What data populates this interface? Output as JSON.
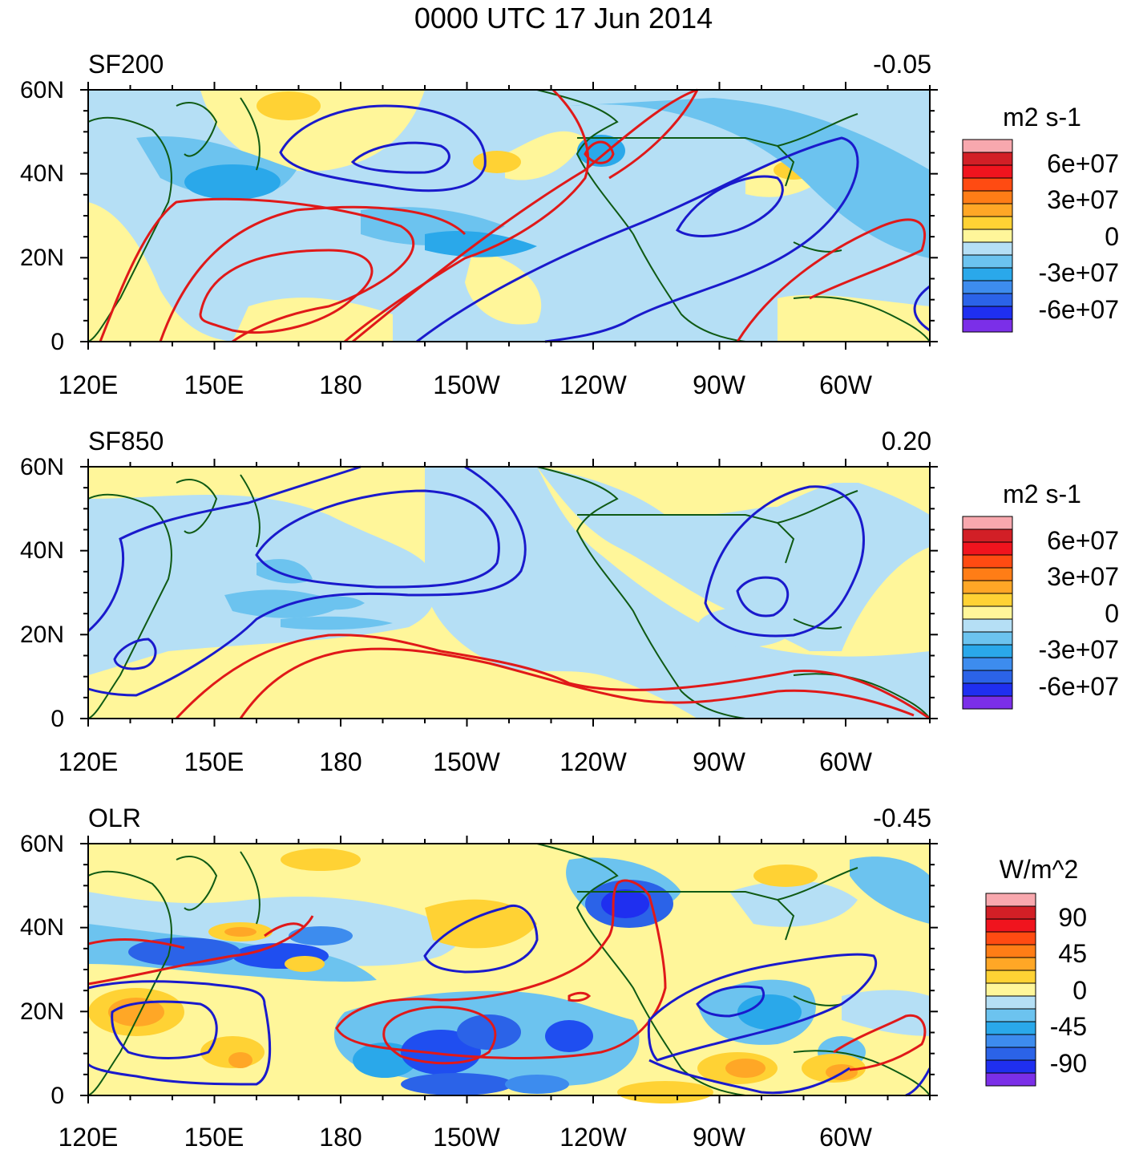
{
  "title": "0000 UTC 17 Jun 2014",
  "colors": {
    "land_outline": "#0f5a14",
    "positive_contour": "#e01919",
    "negative_contour": "#1a1acc",
    "shade_light_yellow": "#fff69a",
    "shade_light_blue": "#b5dff5",
    "shade_mid_blue": "#6cc3ef",
    "shade_blue": "#2aa8ea",
    "shade_dark_blue": "#1f4ef0",
    "shade_orange_yellow": "#ffd234",
    "shade_orange": "#ffa726"
  },
  "lat_labels": [
    "60N",
    "40N",
    "20N",
    "0"
  ],
  "lon_labels": [
    "120E",
    "150E",
    "180",
    "150W",
    "120W",
    "90W",
    "60W"
  ],
  "panels": [
    {
      "id": "sf200",
      "label": "SF200",
      "correlation": "-0.05",
      "units": "m2 s-1",
      "colorbar_labels": [
        "6e+07",
        "3e+07",
        "0",
        "-3e+07",
        "-6e+07"
      ]
    },
    {
      "id": "sf850",
      "label": "SF850",
      "correlation": "0.20",
      "units": "m2 s-1",
      "colorbar_labels": [
        "6e+07",
        "3e+07",
        "0",
        "-3e+07",
        "-6e+07"
      ]
    },
    {
      "id": "olr",
      "label": "OLR",
      "correlation": "-0.45",
      "units": "W/m^2",
      "colorbar_labels": [
        "90",
        "45",
        "0",
        "-45",
        "-90"
      ]
    }
  ],
  "colorbar_colors": [
    "#f8a8ae",
    "#d21f26",
    "#f0141e",
    "#ff4b12",
    "#ff7d16",
    "#ffa726",
    "#ffd234",
    "#fff69a",
    "#b5dff5",
    "#6cc3ef",
    "#2aa8ea",
    "#3d8cee",
    "#2b63e8",
    "#1f2ff0",
    "#7b2fe8"
  ]
}
